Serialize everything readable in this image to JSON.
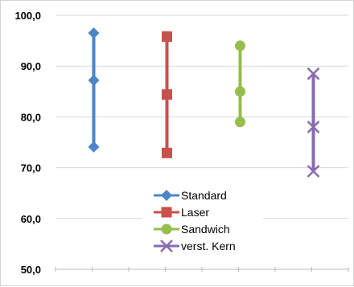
{
  "chart_data": {
    "type": "scatter",
    "title": "",
    "xlabel": "",
    "ylabel": "",
    "ylim": [
      50,
      100
    ],
    "y_ticks": [
      "100,0",
      "90,0",
      "80,0",
      "70,0",
      "60,0",
      "50,0"
    ],
    "y_tick_values": [
      100,
      90,
      80,
      70,
      60,
      50
    ],
    "grid": "horizontal",
    "legend_position": "bottom-center",
    "categories": [
      "Standard",
      "Laser",
      "Sandwich",
      "verst. Kern"
    ],
    "series": [
      {
        "name": "Standard",
        "color": "#4a86c8",
        "marker": "diamond",
        "values": [
          96.5,
          87.2,
          74.1
        ]
      },
      {
        "name": "Laser",
        "color": "#c9504b",
        "marker": "square",
        "values": [
          95.8,
          84.4,
          72.9
        ]
      },
      {
        "name": "Sandwich",
        "color": "#97bd4d",
        "marker": "circle",
        "values": [
          94.0,
          85.0,
          79.0
        ]
      },
      {
        "name": "verst. Kern",
        "color": "#8a6bb0",
        "marker": "cross",
        "values": [
          88.5,
          78.0,
          69.3
        ]
      }
    ]
  }
}
